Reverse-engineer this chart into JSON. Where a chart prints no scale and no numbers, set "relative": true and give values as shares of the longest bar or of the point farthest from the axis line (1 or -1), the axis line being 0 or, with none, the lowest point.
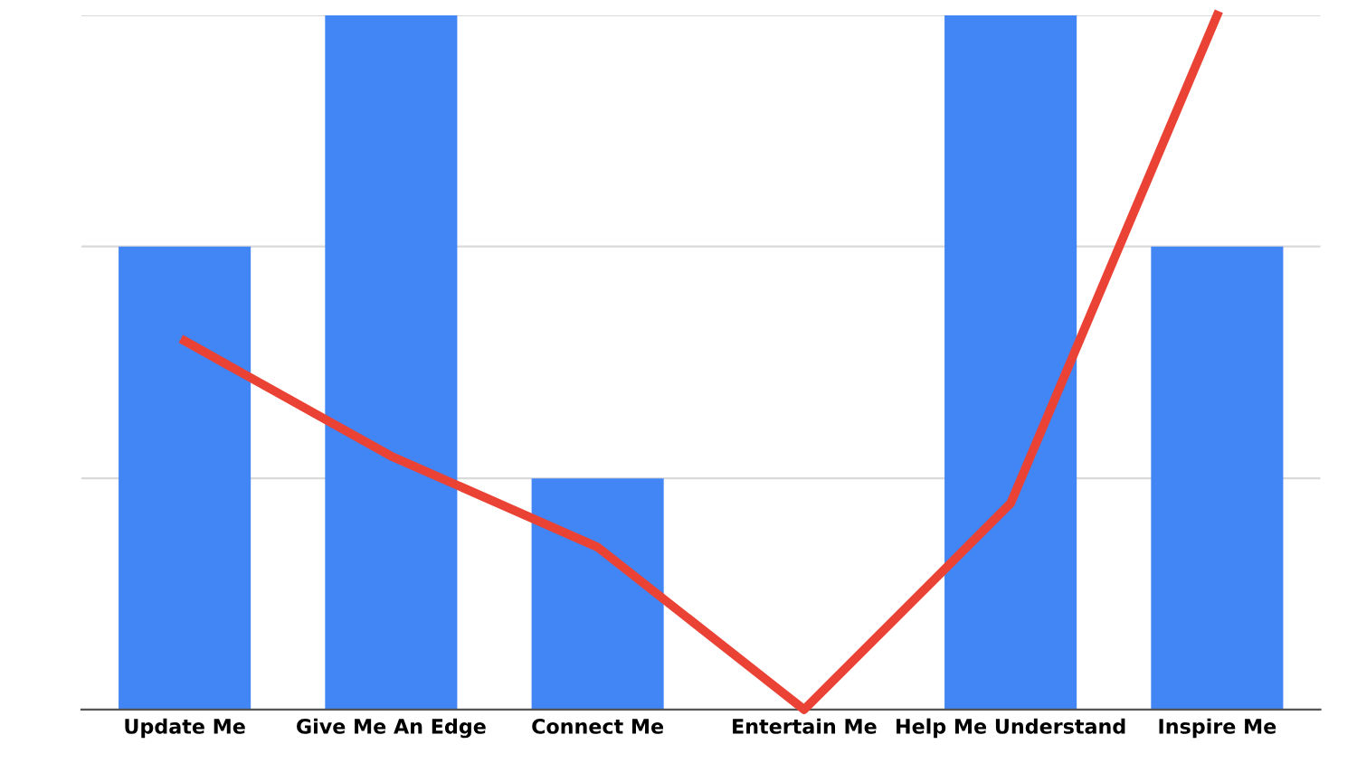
{
  "chart_data": {
    "type": "bar",
    "relative": true,
    "categories": [
      "Update Me",
      "Give Me An Edge",
      "Connect Me",
      "Entertain Me",
      "Help Me Understand",
      "Inspire Me"
    ],
    "series": [
      {
        "color": "#4285f4",
        "values": [
          0.667,
          1,
          0.333,
          0,
          1,
          0.667
        ]
      },
      {
        "type": "line",
        "color": "#ea4335",
        "values": [
          0.531,
          0.365,
          0.234,
          0,
          0.297,
          1
        ]
      }
    ],
    "ref_lines": [
      {
        "axis": "y",
        "value": 0.333,
        "color": "#d9d9d9"
      },
      {
        "axis": "y",
        "value": 0.667,
        "color": "#d9d9d9"
      },
      {
        "axis": "y",
        "value": 1,
        "color": "#d9d9d9"
      }
    ]
  }
}
